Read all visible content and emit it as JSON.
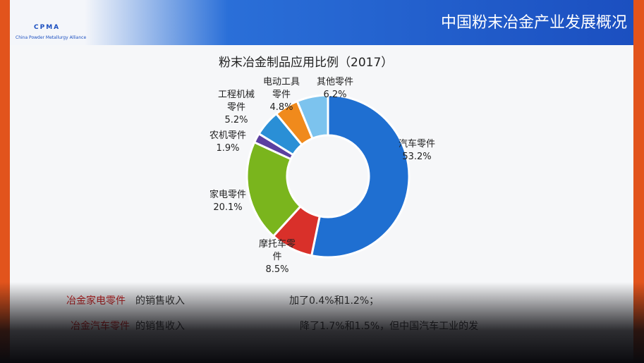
{
  "header": {
    "logo": "CPMA",
    "logo_subtitle": "China Powder Metallurgy Alliance",
    "title": "中国粉末冶金产业发展概况"
  },
  "chart_data": {
    "type": "donut",
    "title": "粉末冶金制品应用比例（2017）",
    "categories": [
      "汽车零件",
      "摩托车零件",
      "家电零件",
      "农机零件",
      "工程机械零件",
      "电动工具零件",
      "其他零件"
    ],
    "values": [
      53.2,
      8.5,
      20.1,
      1.9,
      5.2,
      4.8,
      6.2
    ],
    "value_labels": [
      "53.2%",
      "8.5%",
      "20.1%",
      "1.9%",
      "5.2%",
      "4.8%",
      "6.2%"
    ],
    "colors": [
      "#1f6fd1",
      "#d9302a",
      "#7ab51d",
      "#5b3fa0",
      "#2a8fd6",
      "#f08a1c",
      "#7cc3ee"
    ]
  },
  "notes": [
    "冶金家电零件",
    "的销售收入",
    "加了0.4%和1.2%；",
    "冶金汽车零件",
    "的销售收入",
    "降了1.7%和1.5%，但中国汽车工业的发"
  ]
}
